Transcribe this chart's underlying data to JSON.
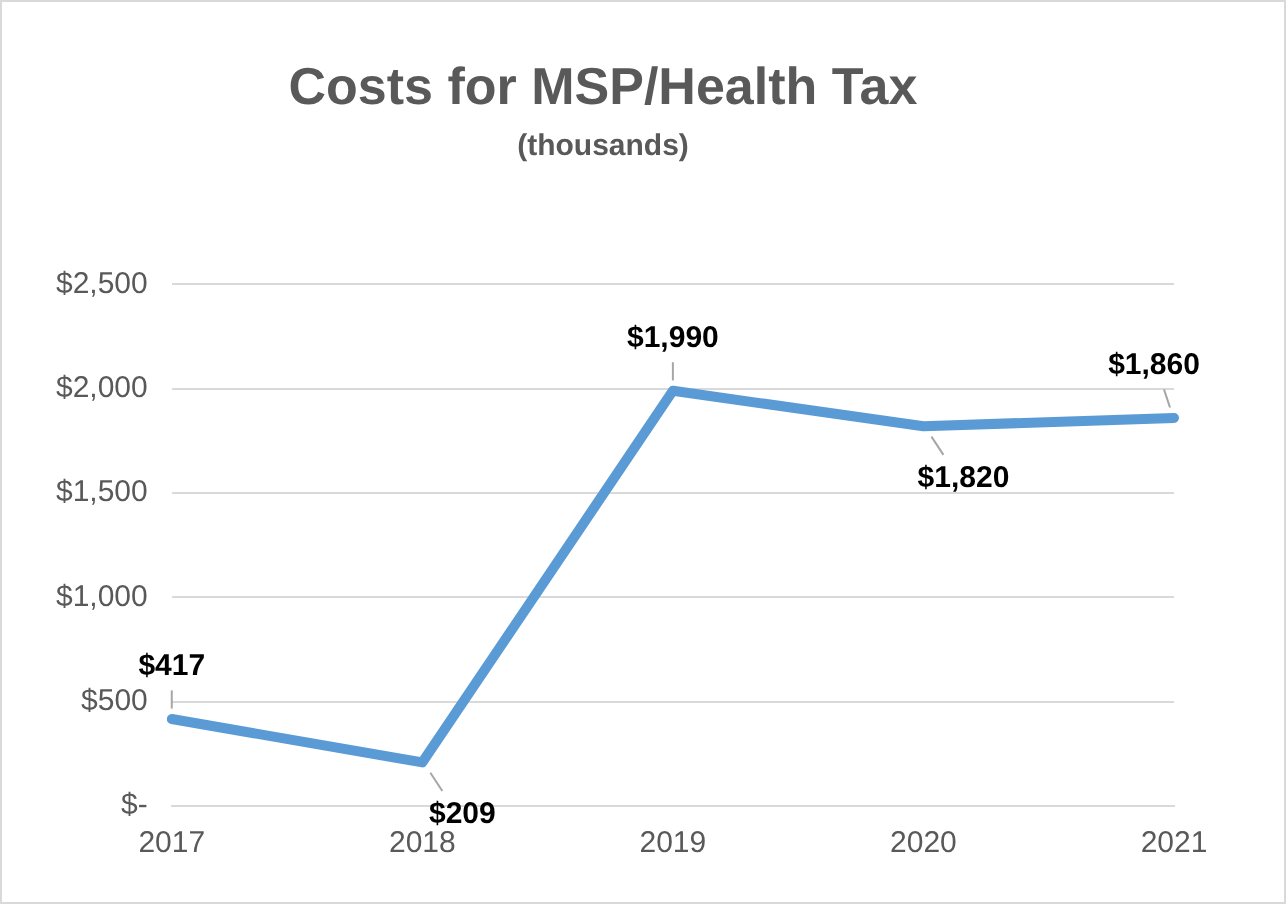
{
  "chart_data": {
    "type": "line",
    "title": "Costs for MSP/Health Tax",
    "subtitle": "(thousands)",
    "categories": [
      "2017",
      "2018",
      "2019",
      "2020",
      "2021"
    ],
    "series": [
      {
        "color": "#5b9bd5",
        "values": [
          417,
          209,
          1990,
          1820,
          1860
        ],
        "value_labels": [
          "$417",
          "$209",
          "$1,990",
          "$1,820",
          "$1,860"
        ]
      }
    ],
    "ylim": [
      0,
      2500
    ],
    "yticks": [
      {
        "value": 0,
        "label": "$-"
      },
      {
        "value": 500,
        "label": "$500"
      },
      {
        "value": 1000,
        "label": "$1,000"
      },
      {
        "value": 1500,
        "label": "$1,500"
      },
      {
        "value": 2000,
        "label": "$2,000"
      },
      {
        "value": 2500,
        "label": "$2,500"
      }
    ],
    "grid": "y",
    "legend": false,
    "marker": "none",
    "line_style": "solid"
  }
}
